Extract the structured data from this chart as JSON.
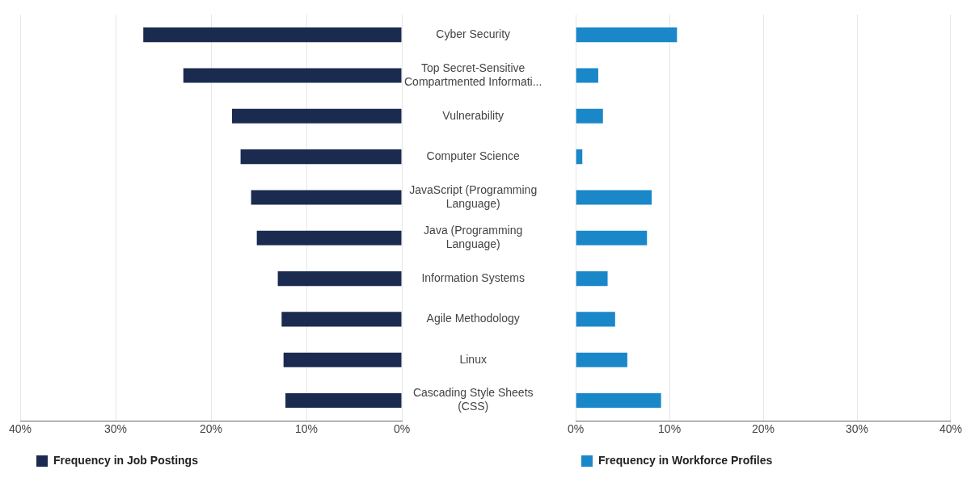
{
  "chart_data": [
    {
      "type": "bar",
      "orientation": "horizontal",
      "categories": [
        "Cyber Security",
        "Top Secret-Sensitive Compartmented Informati...",
        "Vulnerability",
        "Computer Science",
        "JavaScript (Programming Language)",
        "Java (Programming Language)",
        "Information Systems",
        "Agile Methodology",
        "Linux",
        "Cascading Style Sheets (CSS)"
      ],
      "series": [
        {
          "name": "Frequency in Job Postings",
          "color": "#1b2a4f",
          "values": [
            27.1,
            22.9,
            17.8,
            16.9,
            15.8,
            15.2,
            13.0,
            12.6,
            12.4,
            12.2
          ]
        }
      ],
      "xlim": [
        40,
        0
      ],
      "xticks": [
        {
          "value": 40,
          "label": "40%"
        },
        {
          "value": 30,
          "label": "30%"
        },
        {
          "value": 20,
          "label": "20%"
        },
        {
          "value": 10,
          "label": "10%"
        },
        {
          "value": 0,
          "label": "0%"
        }
      ],
      "grid": "x",
      "legend": "bottom left"
    },
    {
      "type": "bar",
      "orientation": "horizontal",
      "categories": [
        null,
        null,
        null,
        null,
        null,
        null,
        null,
        null,
        null,
        null
      ],
      "series": [
        {
          "name": "Frequency in Workforce Profiles",
          "color": "#1a87c9",
          "values": [
            10.8,
            2.4,
            2.9,
            0.7,
            8.1,
            7.6,
            3.4,
            4.2,
            5.5,
            9.1
          ]
        }
      ],
      "xlim": [
        0,
        40
      ],
      "xticks": [
        {
          "value": 0,
          "label": "0%"
        },
        {
          "value": 10,
          "label": "10%"
        },
        {
          "value": 20,
          "label": "20%"
        },
        {
          "value": 30,
          "label": "30%"
        },
        {
          "value": 40,
          "label": "40%"
        }
      ],
      "grid": "x",
      "legend": "bottom left",
      "tick_labels": "x"
    }
  ]
}
